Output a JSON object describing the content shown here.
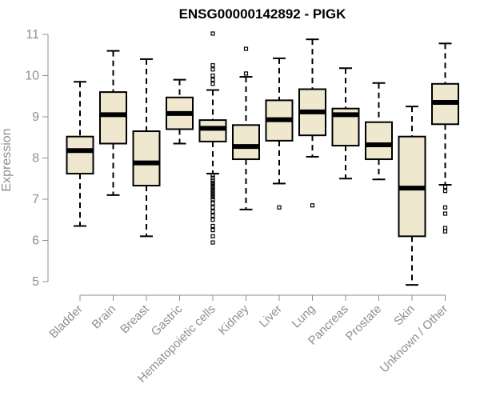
{
  "chart_data": {
    "type": "boxplot",
    "title": "ENSG00000142892 - PIGK",
    "ylabel": "Expression",
    "xlabel": "",
    "ylim": [
      4.8,
      11.1
    ],
    "yticks": [
      5,
      6,
      7,
      8,
      9,
      10,
      11
    ],
    "grid": false,
    "colors": {
      "box_fill": "#efe8cf",
      "stroke": "#000000",
      "axis_text": "#8f8f8f"
    },
    "categories": [
      "Bladder",
      "Brain",
      "Breast",
      "Gastric",
      "Hematopoietic cells",
      "Kidney",
      "Liver",
      "Lung",
      "Pancreas",
      "Prostate",
      "Skin",
      "Unknown / Other"
    ],
    "boxes": [
      {
        "category": "Bladder",
        "whisker_low": 6.35,
        "q1": 7.62,
        "median": 8.18,
        "q3": 8.52,
        "whisker_high": 9.85,
        "outliers": []
      },
      {
        "category": "Brain",
        "whisker_low": 7.1,
        "q1": 8.35,
        "median": 9.05,
        "q3": 9.6,
        "whisker_high": 10.6,
        "outliers": []
      },
      {
        "category": "Breast",
        "whisker_low": 6.1,
        "q1": 7.33,
        "median": 7.88,
        "q3": 8.65,
        "whisker_high": 10.4,
        "outliers": []
      },
      {
        "category": "Gastric",
        "whisker_low": 8.35,
        "q1": 8.7,
        "median": 9.08,
        "q3": 9.47,
        "whisker_high": 9.9,
        "outliers": []
      },
      {
        "category": "Hematopoietic cells",
        "whisker_low": 7.62,
        "q1": 8.4,
        "median": 8.72,
        "q3": 8.92,
        "whisker_high": 9.65,
        "outliers": [
          11.02,
          10.25,
          10.15,
          10.0,
          9.9,
          9.8,
          7.58,
          7.52,
          7.45,
          7.4,
          7.35,
          7.3,
          7.25,
          7.2,
          7.15,
          7.1,
          7.05,
          7.0,
          6.9,
          6.8,
          6.7,
          6.6,
          6.5,
          6.35,
          6.25,
          6.1,
          5.95
        ]
      },
      {
        "category": "Kidney",
        "whisker_low": 6.75,
        "q1": 7.97,
        "median": 8.28,
        "q3": 8.8,
        "whisker_high": 9.97,
        "outliers": [
          10.65,
          10.05
        ]
      },
      {
        "category": "Liver",
        "whisker_low": 7.38,
        "q1": 8.42,
        "median": 8.93,
        "q3": 9.4,
        "whisker_high": 10.42,
        "outliers": [
          6.8
        ]
      },
      {
        "category": "Lung",
        "whisker_low": 8.03,
        "q1": 8.55,
        "median": 9.12,
        "q3": 9.67,
        "whisker_high": 10.88,
        "outliers": [
          6.85
        ]
      },
      {
        "category": "Pancreas",
        "whisker_low": 7.5,
        "q1": 8.3,
        "median": 9.05,
        "q3": 9.2,
        "whisker_high": 10.18,
        "outliers": []
      },
      {
        "category": "Prostate",
        "whisker_low": 7.48,
        "q1": 7.97,
        "median": 8.32,
        "q3": 8.87,
        "whisker_high": 9.82,
        "outliers": []
      },
      {
        "category": "Skin",
        "whisker_low": 4.92,
        "q1": 6.1,
        "median": 7.27,
        "q3": 8.52,
        "whisker_high": 9.25,
        "outliers": []
      },
      {
        "category": "Unknown / Other",
        "whisker_low": 7.35,
        "q1": 8.82,
        "median": 9.35,
        "q3": 9.8,
        "whisker_high": 10.78,
        "outliers": [
          7.3,
          7.2,
          6.8,
          6.65,
          6.3,
          6.22
        ]
      }
    ]
  }
}
